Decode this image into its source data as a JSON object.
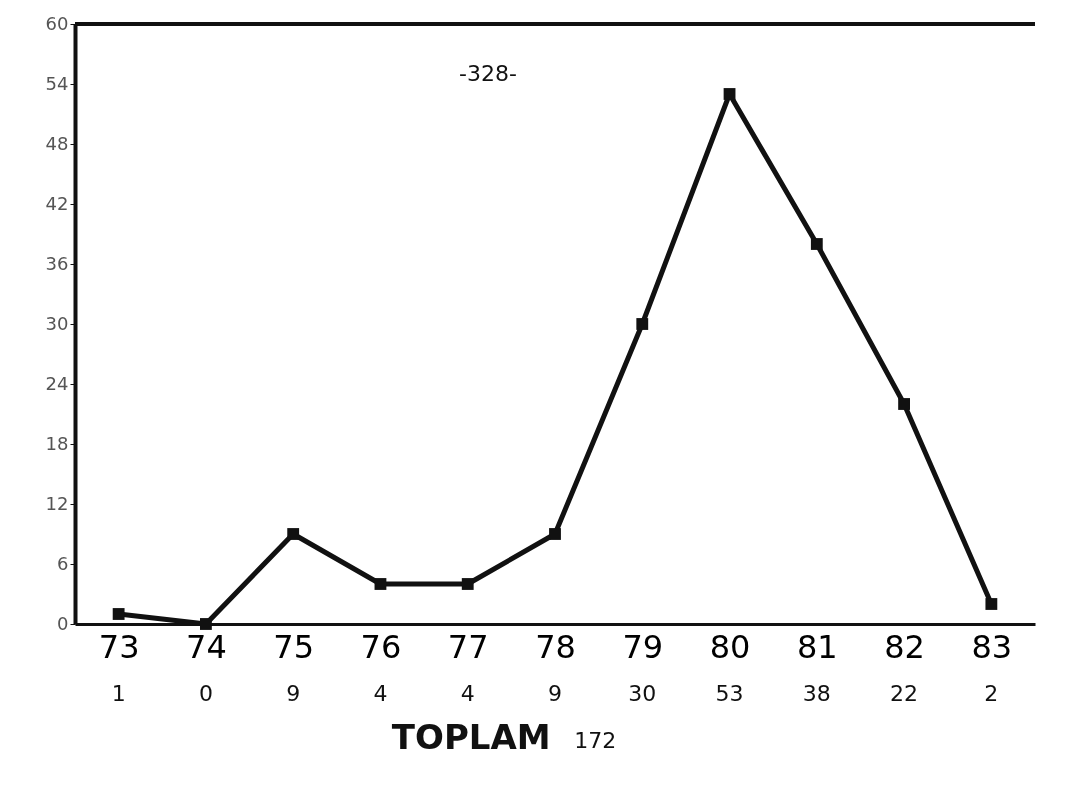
{
  "chart_data": {
    "type": "line",
    "categories": [
      "73",
      "74",
      "75",
      "76",
      "77",
      "78",
      "79",
      "80",
      "81",
      "82",
      "83"
    ],
    "series": [
      {
        "color": "#111111",
        "values": [
          1,
          0,
          9,
          4,
          4,
          9,
          30,
          53,
          38,
          22,
          2
        ]
      }
    ],
    "ylim": [
      0,
      60
    ],
    "yticks": [
      0,
      6,
      12,
      18,
      24,
      30,
      36,
      42,
      48,
      54,
      60
    ],
    "data_labels": true,
    "marker": "square",
    "line_style": "solid",
    "grid": false,
    "annotations": [
      "-328-",
      "TOPLAM",
      "172"
    ]
  }
}
